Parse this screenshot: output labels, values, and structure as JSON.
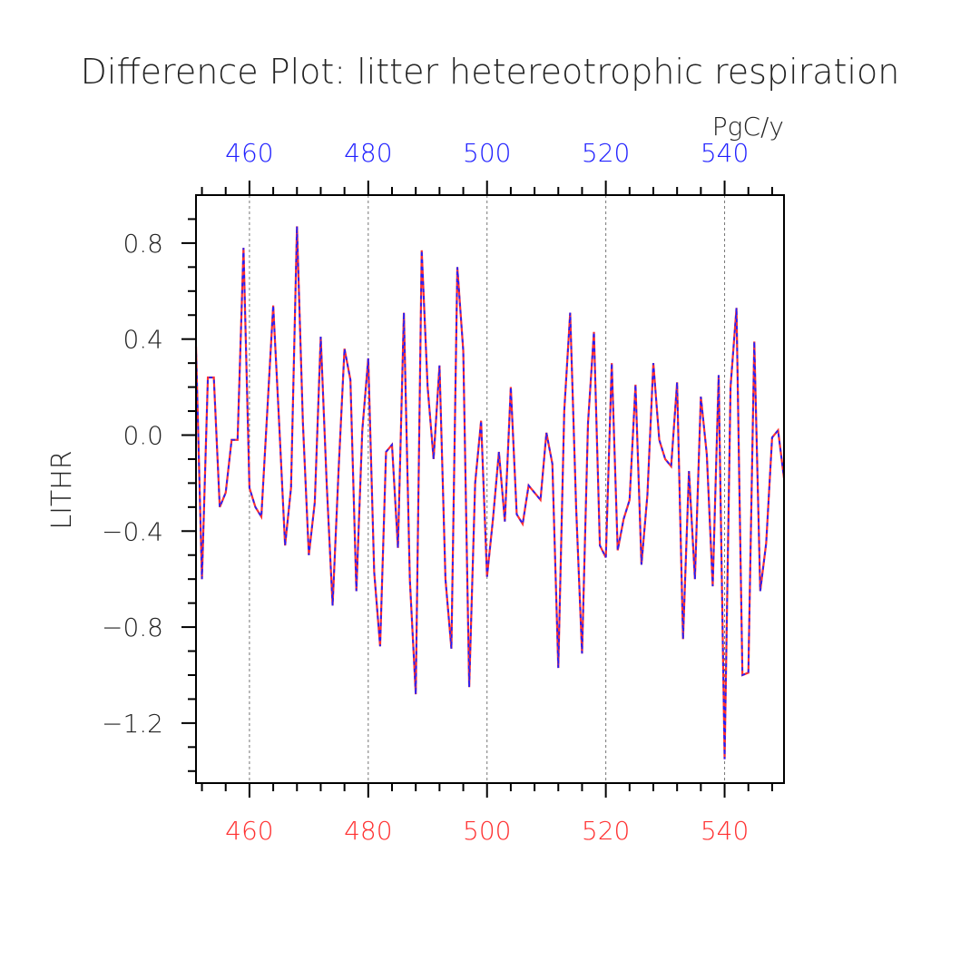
{
  "chart_data": {
    "type": "line",
    "title": "Difference Plot: litter hetereotrophic respiration",
    "ylabel": "LITHR",
    "units": "PgC/y",
    "xlim": [
      451,
      550
    ],
    "ylim": [
      -1.45,
      1.0
    ],
    "x_ticks": [
      460,
      480,
      500,
      520,
      540
    ],
    "x_tick_labels_bottom": [
      "460",
      "480",
      "500",
      "520",
      "540"
    ],
    "x_tick_labels_top": [
      "460",
      "480",
      "500",
      "520",
      "540"
    ],
    "y_ticks": [
      0.8,
      0.4,
      0.0,
      -0.4,
      -0.8,
      -1.2
    ],
    "y_tick_labels": [
      "0.8",
      "0.4",
      "0.0",
      "−0.4",
      "−0.8",
      "−1.2"
    ],
    "grid": "vertical dashed at major x ticks",
    "colors": {
      "series_a": "#ff3030",
      "series_b": "#2020ff",
      "bottom_axis_labels": "#ff3030",
      "top_axis_labels": "#2020ff"
    },
    "x": [
      451,
      452,
      453,
      454,
      455,
      456,
      457,
      458,
      459,
      460,
      461,
      462,
      463,
      464,
      465,
      466,
      467,
      468,
      469,
      470,
      471,
      472,
      473,
      474,
      475,
      476,
      477,
      478,
      479,
      480,
      481,
      482,
      483,
      484,
      485,
      486,
      487,
      488,
      489,
      490,
      491,
      492,
      493,
      494,
      495,
      496,
      497,
      498,
      499,
      500,
      501,
      502,
      503,
      504,
      505,
      506,
      507,
      508,
      509,
      510,
      511,
      512,
      513,
      514,
      515,
      516,
      517,
      518,
      519,
      520,
      521,
      522,
      523,
      524,
      525,
      526,
      527,
      528,
      529,
      530,
      531,
      532,
      533,
      534,
      535,
      536,
      537,
      538,
      539,
      540,
      541,
      542,
      543,
      544,
      545,
      546,
      547,
      548,
      549,
      550
    ],
    "series": [
      {
        "values": [
          0.37,
          -0.6,
          0.24,
          0.24,
          -0.3,
          -0.24,
          -0.02,
          -0.02,
          0.78,
          -0.22,
          -0.3,
          -0.34,
          0.1,
          0.54,
          0.05,
          -0.46,
          -0.22,
          0.87,
          0.05,
          -0.5,
          -0.28,
          0.41,
          -0.2,
          -0.71,
          -0.15,
          0.36,
          0.23,
          -0.65,
          0.02,
          0.32,
          -0.57,
          -0.88,
          -0.07,
          -0.04,
          -0.47,
          0.51,
          -0.6,
          -1.08,
          0.77,
          0.2,
          -0.1,
          0.29,
          -0.6,
          -0.89,
          0.7,
          0.35,
          -1.05,
          -0.2,
          0.06,
          -0.59,
          -0.35,
          -0.07,
          -0.36,
          0.2,
          -0.33,
          -0.37,
          -0.21,
          -0.24,
          -0.27,
          0.01,
          -0.12,
          -0.97,
          0.1,
          0.51,
          -0.3,
          -0.91,
          0.05,
          0.43,
          -0.46,
          -0.51,
          0.3,
          -0.48,
          -0.35,
          -0.27,
          0.21,
          -0.54,
          -0.25,
          0.3,
          -0.02,
          -0.1,
          -0.13,
          0.22,
          -0.85,
          -0.15,
          -0.6,
          0.16,
          -0.08,
          -0.63,
          0.25,
          -1.35,
          0.2,
          0.53,
          -1.0,
          -0.99,
          0.39,
          -0.65,
          -0.45,
          -0.01,
          0.02,
          -0.18
        ]
      },
      {
        "values": [
          0.37,
          -0.6,
          0.24,
          0.24,
          -0.3,
          -0.24,
          -0.02,
          -0.02,
          0.78,
          -0.22,
          -0.3,
          -0.34,
          0.1,
          0.54,
          0.05,
          -0.46,
          -0.22,
          0.87,
          0.05,
          -0.5,
          -0.28,
          0.41,
          -0.2,
          -0.71,
          -0.15,
          0.36,
          0.23,
          -0.65,
          0.02,
          0.32,
          -0.57,
          -0.88,
          -0.07,
          -0.04,
          -0.47,
          0.51,
          -0.6,
          -1.08,
          0.77,
          0.2,
          -0.1,
          0.29,
          -0.6,
          -0.89,
          0.7,
          0.35,
          -1.05,
          -0.2,
          0.06,
          -0.59,
          -0.35,
          -0.07,
          -0.36,
          0.2,
          -0.33,
          -0.37,
          -0.21,
          -0.24,
          -0.27,
          0.01,
          -0.12,
          -0.97,
          0.1,
          0.51,
          -0.3,
          -0.91,
          0.05,
          0.43,
          -0.46,
          -0.51,
          0.3,
          -0.48,
          -0.35,
          -0.27,
          0.21,
          -0.54,
          -0.25,
          0.3,
          -0.02,
          -0.1,
          -0.13,
          0.22,
          -0.85,
          -0.15,
          -0.6,
          0.16,
          -0.08,
          -0.63,
          0.25,
          -1.35,
          0.2,
          0.53,
          -1.0,
          -0.99,
          0.39,
          -0.65,
          -0.45,
          -0.01,
          0.02,
          -0.18
        ]
      }
    ]
  }
}
